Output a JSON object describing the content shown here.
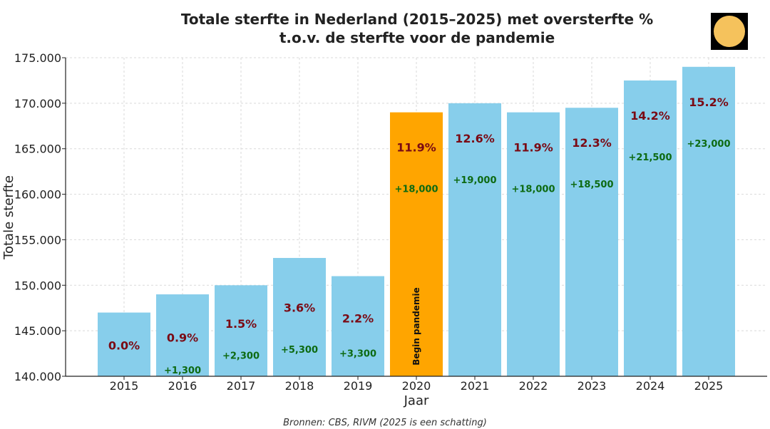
{
  "chart_data": {
    "type": "bar",
    "title_line1": "Totale sterfte in Nederland (2015–2025) met oversterfte %",
    "title_line2": "t.o.v. de sterfte voor de pandemie",
    "xlabel": "Jaar",
    "ylabel": "Totale sterfte",
    "ylim": [
      140000,
      175000
    ],
    "yticks": [
      140000,
      145000,
      150000,
      155000,
      160000,
      165000,
      170000,
      175000
    ],
    "ytick_labels": [
      "140.000",
      "145.000",
      "150.000",
      "155.000",
      "160.000",
      "165.000",
      "170.000",
      "175.000"
    ],
    "categories": [
      "2015",
      "2016",
      "2017",
      "2018",
      "2019",
      "2020",
      "2021",
      "2022",
      "2023",
      "2024",
      "2025"
    ],
    "values": [
      147000,
      149000,
      150000,
      153000,
      151000,
      169000,
      170000,
      169000,
      169500,
      172500,
      174000
    ],
    "oversterfte_pct": [
      "0.0%",
      "0.9%",
      "1.5%",
      "3.6%",
      "2.2%",
      "11.9%",
      "12.6%",
      "11.9%",
      "12.3%",
      "14.2%",
      "15.2%"
    ],
    "oversterfte_abs": [
      "",
      "+1,300",
      "+2,300",
      "+5,300",
      "+3,300",
      "+18,000",
      "+19,000",
      "+18,000",
      "+18,500",
      "+21,500",
      "+23,000"
    ],
    "highlight_category": "2020",
    "highlight_annotation": "Begin pandemie",
    "grid": true,
    "colors": {
      "bar": "#87ceeb",
      "highlight": "#ffa500",
      "pct_text": "#7a0a14",
      "abs_text": "#0d6a12"
    }
  },
  "source_note": "Bronnen: CBS, RIVM (2025 is een schatting)",
  "logo": {
    "icon": "sun-logo-icon"
  }
}
